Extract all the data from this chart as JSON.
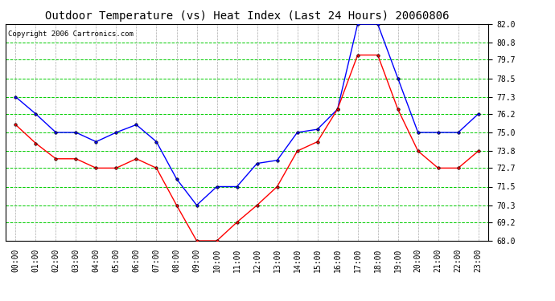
{
  "title": "Outdoor Temperature (vs) Heat Index (Last 24 Hours) 20060806",
  "copyright": "Copyright 2006 Cartronics.com",
  "hours": [
    "00:00",
    "01:00",
    "02:00",
    "03:00",
    "04:00",
    "05:00",
    "06:00",
    "07:00",
    "08:00",
    "09:00",
    "10:00",
    "11:00",
    "12:00",
    "13:00",
    "14:00",
    "15:00",
    "16:00",
    "17:00",
    "18:00",
    "19:00",
    "20:00",
    "21:00",
    "22:00",
    "23:00"
  ],
  "blue_data": [
    77.3,
    76.2,
    75.0,
    75.0,
    74.4,
    75.0,
    75.5,
    74.4,
    72.0,
    70.3,
    71.5,
    71.5,
    73.0,
    73.2,
    75.0,
    75.2,
    76.5,
    82.0,
    82.0,
    78.5,
    75.0,
    75.0,
    75.0,
    76.2
  ],
  "red_data": [
    75.5,
    74.3,
    73.3,
    73.3,
    72.7,
    72.7,
    73.3,
    72.7,
    70.3,
    68.0,
    68.0,
    69.2,
    70.3,
    71.5,
    73.8,
    74.4,
    76.5,
    80.0,
    80.0,
    76.5,
    73.8,
    72.7,
    72.7,
    73.8
  ],
  "blue_color": "#0000FF",
  "red_color": "#FF0000",
  "bg_color": "#FFFFFF",
  "plot_bg_color": "#FFFFFF",
  "grid_h_color": "#00CC00",
  "grid_v_color": "#AAAAAA",
  "ymin": 68.0,
  "ymax": 82.0,
  "yticks": [
    68.0,
    69.2,
    70.3,
    71.5,
    72.7,
    73.8,
    75.0,
    76.2,
    77.3,
    78.5,
    79.7,
    80.8,
    82.0
  ],
  "title_fontsize": 10,
  "copyright_fontsize": 6.5,
  "tick_fontsize": 7,
  "marker": "o",
  "marker_size": 2.5,
  "line_width": 1.0
}
